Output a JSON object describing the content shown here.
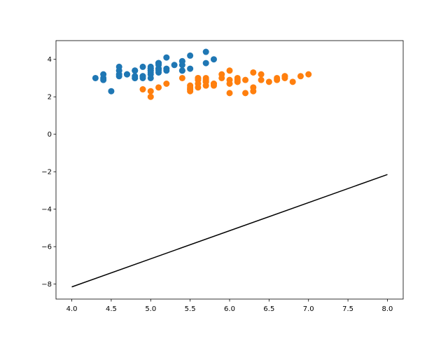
{
  "chart_data": {
    "type": "scatter",
    "title": "",
    "xlabel": "",
    "ylabel": "",
    "xlim": [
      3.8,
      8.2
    ],
    "ylim": [
      -8.8,
      5.0
    ],
    "xticks": [
      4.0,
      4.5,
      5.0,
      5.5,
      6.0,
      6.5,
      7.0,
      7.5,
      8.0
    ],
    "xtick_labels": [
      "4.0",
      "4.5",
      "5.0",
      "5.5",
      "6.0",
      "6.5",
      "7.0",
      "7.5",
      "8.0"
    ],
    "yticks": [
      -8,
      -6,
      -4,
      -2,
      0,
      2,
      4
    ],
    "ytick_labels": [
      "−8",
      "−6",
      "−4",
      "−2",
      "0",
      "2",
      "4"
    ],
    "grid": false,
    "legend": null,
    "series": [
      {
        "kind": "scatter",
        "color": "#1f77b4",
        "points": [
          [
            5.1,
            3.5
          ],
          [
            4.9,
            3.0
          ],
          [
            4.7,
            3.2
          ],
          [
            4.6,
            3.1
          ],
          [
            5.0,
            3.6
          ],
          [
            5.4,
            3.9
          ],
          [
            4.6,
            3.4
          ],
          [
            5.0,
            3.4
          ],
          [
            4.4,
            2.9
          ],
          [
            4.9,
            3.1
          ],
          [
            5.4,
            3.7
          ],
          [
            4.8,
            3.4
          ],
          [
            4.8,
            3.0
          ],
          [
            4.3,
            3.0
          ],
          [
            5.8,
            4.0
          ],
          [
            5.7,
            4.4
          ],
          [
            5.4,
            3.9
          ],
          [
            5.1,
            3.5
          ],
          [
            5.7,
            3.8
          ],
          [
            5.1,
            3.8
          ],
          [
            5.4,
            3.4
          ],
          [
            5.1,
            3.7
          ],
          [
            4.6,
            3.6
          ],
          [
            5.1,
            3.3
          ],
          [
            4.8,
            3.4
          ],
          [
            5.0,
            3.0
          ],
          [
            5.0,
            3.4
          ],
          [
            5.2,
            3.5
          ],
          [
            5.2,
            3.4
          ],
          [
            4.7,
            3.2
          ],
          [
            4.8,
            3.1
          ],
          [
            5.4,
            3.4
          ],
          [
            5.2,
            4.1
          ],
          [
            5.5,
            4.2
          ],
          [
            4.9,
            3.1
          ],
          [
            5.0,
            3.2
          ],
          [
            5.5,
            3.5
          ],
          [
            4.9,
            3.6
          ],
          [
            4.4,
            3.0
          ],
          [
            5.1,
            3.4
          ],
          [
            5.0,
            3.5
          ],
          [
            4.5,
            2.3
          ],
          [
            4.4,
            3.2
          ],
          [
            5.0,
            3.5
          ],
          [
            5.1,
            3.8
          ],
          [
            4.8,
            3.0
          ],
          [
            5.1,
            3.8
          ],
          [
            4.6,
            3.2
          ],
          [
            5.3,
            3.7
          ],
          [
            5.0,
            3.3
          ]
        ]
      },
      {
        "kind": "scatter",
        "color": "#ff7f0e",
        "points": [
          [
            7.0,
            3.2
          ],
          [
            6.4,
            3.2
          ],
          [
            6.9,
            3.1
          ],
          [
            5.5,
            2.3
          ],
          [
            6.5,
            2.8
          ],
          [
            5.7,
            2.8
          ],
          [
            6.3,
            3.3
          ],
          [
            4.9,
            2.4
          ],
          [
            6.6,
            2.9
          ],
          [
            5.2,
            2.7
          ],
          [
            5.0,
            2.0
          ],
          [
            5.9,
            3.0
          ],
          [
            6.0,
            2.2
          ],
          [
            6.1,
            2.9
          ],
          [
            5.6,
            2.9
          ],
          [
            6.7,
            3.1
          ],
          [
            5.6,
            3.0
          ],
          [
            5.8,
            2.7
          ],
          [
            6.2,
            2.2
          ],
          [
            5.6,
            2.5
          ],
          [
            5.9,
            3.2
          ],
          [
            6.1,
            2.8
          ],
          [
            6.3,
            2.5
          ],
          [
            6.1,
            2.8
          ],
          [
            6.4,
            2.9
          ],
          [
            6.6,
            3.0
          ],
          [
            6.8,
            2.8
          ],
          [
            6.7,
            3.0
          ],
          [
            6.0,
            2.9
          ],
          [
            5.7,
            2.6
          ],
          [
            5.5,
            2.4
          ],
          [
            5.5,
            2.4
          ],
          [
            5.8,
            2.7
          ],
          [
            6.0,
            2.7
          ],
          [
            5.4,
            3.0
          ],
          [
            6.0,
            3.4
          ],
          [
            6.7,
            3.1
          ],
          [
            6.3,
            2.3
          ],
          [
            5.6,
            3.0
          ],
          [
            5.5,
            2.5
          ],
          [
            5.5,
            2.6
          ],
          [
            6.1,
            3.0
          ],
          [
            5.8,
            2.6
          ],
          [
            5.0,
            2.3
          ],
          [
            5.6,
            2.7
          ],
          [
            5.7,
            3.0
          ],
          [
            5.7,
            2.9
          ],
          [
            6.2,
            2.9
          ],
          [
            5.1,
            2.5
          ],
          [
            5.7,
            2.8
          ]
        ]
      },
      {
        "kind": "line",
        "color": "#000000",
        "points": [
          [
            4.0,
            -8.15
          ],
          [
            8.0,
            -2.15
          ]
        ]
      }
    ]
  }
}
